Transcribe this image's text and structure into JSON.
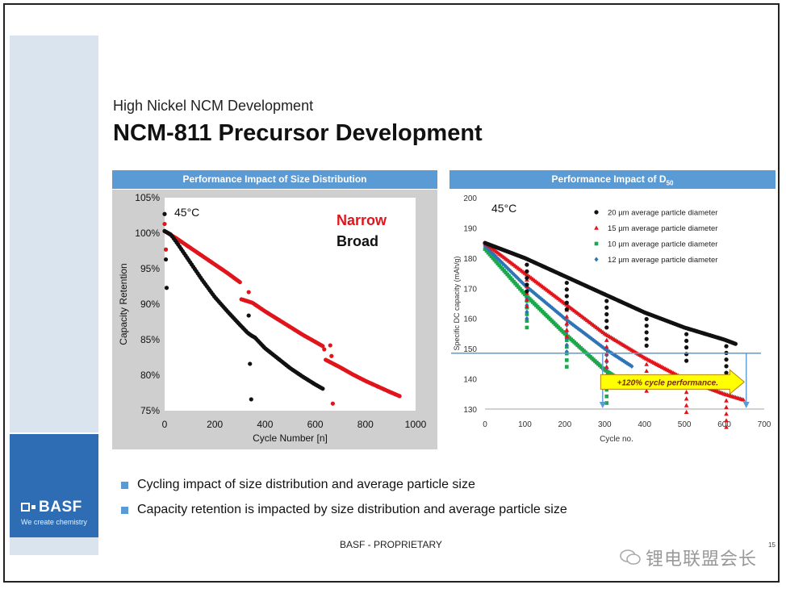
{
  "slide": {
    "subtitle": "High Nickel NCM Development",
    "title": "NCM-811 Precursor Development",
    "footer": "BASF - PROPRIETARY",
    "page_number": "15",
    "watermark": "锂电联盟会长"
  },
  "brand": {
    "logo_text": "BASF",
    "tagline": "We create chemistry",
    "color": "#2e6db4"
  },
  "bullets": [
    "Cycling impact of size distribution and average particle size",
    "Capacity retention is impacted by size distribution and average particle size"
  ],
  "panels": {
    "left_header": "Performance Impact of Size Distribution",
    "right_header_main": "Performance Impact of D",
    "right_header_sub": "50"
  },
  "colors": {
    "accent": "#5b9bd5",
    "narrow": "#e0141b",
    "broad": "#111111",
    "d20": "#111111",
    "d15": "#e0141b",
    "d10": "#1ba84a",
    "d12": "#2e75b6",
    "arrow": "#ffff00"
  },
  "chart_data": [
    {
      "type": "scatter",
      "title": "",
      "xlabel": "Cycle Number [n]",
      "ylabel": "Capacity Retention",
      "xlim": [
        0,
        1000
      ],
      "ylim": [
        75,
        105
      ],
      "x_ticks": [
        "0",
        "200",
        "400",
        "600",
        "800",
        "1000"
      ],
      "y_ticks": [
        "75%",
        "80%",
        "85%",
        "90%",
        "95%",
        "100%",
        "105%"
      ],
      "annotation": "45°C",
      "legend": [
        "Narrow",
        "Broad"
      ],
      "series": [
        {
          "name": "Narrow",
          "points": [
            [
              0,
              100.3
            ],
            [
              50,
              99.2
            ],
            [
              100,
              98.0
            ],
            [
              150,
              96.8
            ],
            [
              200,
              95.6
            ],
            [
              250,
              94.4
            ],
            [
              300,
              93.1
            ],
            [
              305,
              90.7
            ],
            [
              350,
              90.2
            ],
            [
              400,
              89.0
            ],
            [
              450,
              87.9
            ],
            [
              500,
              86.8
            ],
            [
              550,
              85.7
            ],
            [
              600,
              84.7
            ],
            [
              635,
              84.0
            ],
            [
              640,
              82.2
            ],
            [
              700,
              81.1
            ],
            [
              750,
              80.1
            ],
            [
              800,
              79.2
            ],
            [
              850,
              78.4
            ],
            [
              900,
              77.6
            ],
            [
              940,
              77.0
            ]
          ]
        },
        {
          "name": "Broad",
          "points": [
            [
              0,
              100.3
            ],
            [
              25,
              99.8
            ],
            [
              50,
              98.6
            ],
            [
              100,
              96.0
            ],
            [
              150,
              93.4
            ],
            [
              200,
              91.0
            ],
            [
              250,
              89.0
            ],
            [
              300,
              87.1
            ],
            [
              330,
              86.0
            ],
            [
              345,
              85.6
            ],
            [
              360,
              85.3
            ],
            [
              400,
              83.8
            ],
            [
              450,
              82.4
            ],
            [
              500,
              81.0
            ],
            [
              550,
              79.8
            ],
            [
              600,
              78.7
            ],
            [
              630,
              78.1
            ]
          ]
        }
      ]
    },
    {
      "type": "scatter",
      "title": "",
      "xlabel": "Cycle no.",
      "ylabel": "Specific DC capacity (mAh/g)",
      "xlim": [
        0,
        700
      ],
      "ylim": [
        130,
        200
      ],
      "x_ticks": [
        "0",
        "100",
        "200",
        "300",
        "400",
        "500",
        "600",
        "700"
      ],
      "y_ticks": [
        "130",
        "140",
        "150",
        "160",
        "170",
        "180",
        "190",
        "200"
      ],
      "annotation": "45°C",
      "arrow_label": "+120% cycle performance.",
      "series": [
        {
          "name": "20 µm average particle diameter",
          "points": [
            [
              0,
              185
            ],
            [
              100,
              180
            ],
            [
              200,
              174
            ],
            [
              300,
              168
            ],
            [
              400,
              162
            ],
            [
              500,
              157
            ],
            [
              600,
              153
            ],
            [
              630,
              151.5
            ]
          ]
        },
        {
          "name": "15 µm average particle diameter",
          "points": [
            [
              0,
              185
            ],
            [
              100,
              175
            ],
            [
              200,
              165
            ],
            [
              300,
              155
            ],
            [
              400,
              147
            ],
            [
              500,
              140
            ],
            [
              600,
              135
            ],
            [
              650,
              133
            ]
          ]
        },
        {
          "name": "10 µm average particle diameter",
          "points": [
            [
              0,
              183
            ],
            [
              100,
              168
            ],
            [
              200,
              155
            ],
            [
              300,
              143
            ],
            [
              370,
              137
            ]
          ]
        },
        {
          "name": "12 µm average particle diameter",
          "points": [
            [
              0,
              184
            ],
            [
              100,
              171
            ],
            [
              200,
              160
            ],
            [
              300,
              150
            ],
            [
              370,
              144
            ]
          ]
        }
      ]
    }
  ]
}
